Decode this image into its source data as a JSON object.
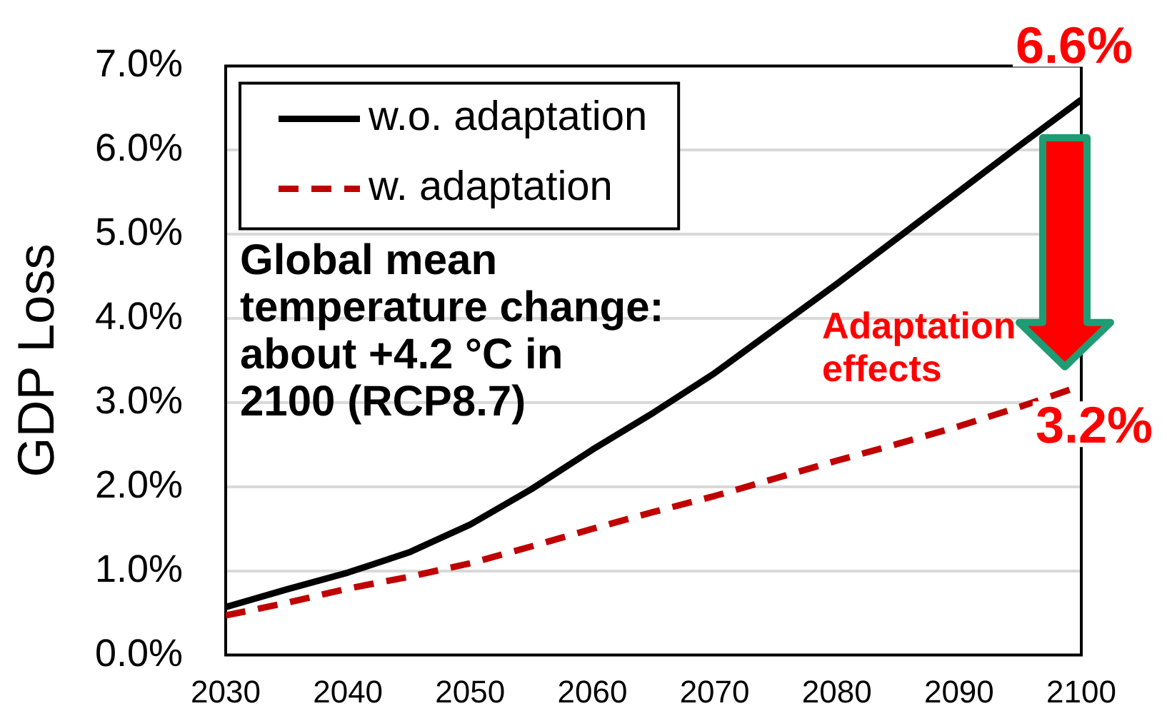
{
  "chart_data": {
    "type": "line",
    "ylabel": "GDP Loss",
    "annotations": [
      "Global mean\ntemperature change:\nabout +4.2 °C in\n2100 (RCP8.7)",
      "Adaptation effects"
    ],
    "x": [
      2030,
      2035,
      2040,
      2045,
      2050,
      2055,
      2060,
      2065,
      2070,
      2075,
      2080,
      2085,
      2090,
      2095,
      2100
    ],
    "series": [
      {
        "name": "w.o. adaptation",
        "color": "#000000",
        "line_style": "solid",
        "values": [
          0.57,
          0.78,
          0.98,
          1.22,
          1.55,
          1.97,
          2.44,
          2.88,
          3.35,
          3.88,
          4.41,
          4.96,
          5.51,
          6.06,
          6.6
        ],
        "value_labels": [
          null,
          null,
          null,
          null,
          null,
          null,
          null,
          null,
          null,
          null,
          null,
          null,
          null,
          null,
          "6.6%"
        ]
      },
      {
        "name": "w. adaptation",
        "color": "#c00000",
        "line_style": "dashed",
        "values": [
          0.47,
          0.62,
          0.79,
          0.93,
          1.09,
          1.29,
          1.5,
          1.7,
          1.89,
          2.1,
          2.31,
          2.51,
          2.72,
          2.95,
          3.2
        ],
        "value_labels": [
          null,
          null,
          null,
          null,
          null,
          null,
          null,
          null,
          null,
          null,
          null,
          null,
          null,
          null,
          "3.2%"
        ]
      }
    ],
    "xlim": [
      2030,
      2100
    ],
    "xticks": [
      2030,
      2040,
      2050,
      2060,
      2070,
      2080,
      2090,
      2100
    ],
    "ylim": [
      0,
      7
    ],
    "yticks": [
      {
        "value": 0,
        "label": "0.0%"
      },
      {
        "value": 1,
        "label": "1.0%"
      },
      {
        "value": 2,
        "label": "2.0%"
      },
      {
        "value": 3,
        "label": "3.0%"
      },
      {
        "value": 4,
        "label": "4.0%"
      },
      {
        "value": 5,
        "label": "5.0%"
      },
      {
        "value": 6,
        "label": "6.0%"
      },
      {
        "value": 7,
        "label": "7.0%"
      }
    ],
    "grid": "y",
    "legend": "top left",
    "marker": "none"
  }
}
